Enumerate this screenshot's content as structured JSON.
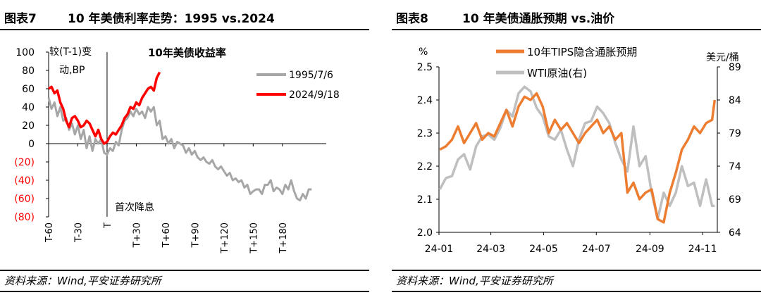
{
  "chart_data": [
    {
      "type": "line",
      "figure_label": "图表7",
      "title": "10 年美债利率走势：1995 vs.2024",
      "inner_title": "10年美债收益率",
      "ylabel": "较(T-1)变动,BP",
      "ylabel_lines": [
        "较(T-1)变",
        "动,BP"
      ],
      "ylim": [
        -80,
        100
      ],
      "yticks": [
        100,
        80,
        60,
        40,
        20,
        0,
        -20,
        -40,
        -60,
        -80
      ],
      "ytick_labels": [
        "100",
        "80",
        "60",
        "40",
        "20",
        "0",
        "(20)",
        "(40)",
        "(60)",
        "(80)"
      ],
      "negative_label_color": "#ff0000",
      "xlim": [
        -60,
        225
      ],
      "xticks": [
        -60,
        -30,
        0,
        30,
        60,
        90,
        120,
        150,
        180
      ],
      "xtick_labels": [
        "T-60",
        "T-30",
        "T",
        "T+30",
        "T+60",
        "T+90",
        "T+120",
        "T+150",
        "T+180"
      ],
      "annotation": "首次降息",
      "annotation_x": 0,
      "legend_position": "right",
      "series": [
        {
          "name": "1995/7/6",
          "color": "#a6a6a6",
          "x": [
            -60,
            -57,
            -54,
            -51,
            -48,
            -45,
            -42,
            -39,
            -36,
            -33,
            -30,
            -27,
            -24,
            -21,
            -18,
            -15,
            -12,
            -9,
            -6,
            -3,
            0,
            3,
            6,
            9,
            12,
            15,
            18,
            21,
            24,
            27,
            30,
            33,
            36,
            39,
            42,
            45,
            48,
            51,
            54,
            57,
            60,
            63,
            66,
            69,
            72,
            75,
            78,
            81,
            84,
            87,
            90,
            93,
            96,
            99,
            102,
            105,
            108,
            111,
            114,
            117,
            120,
            123,
            126,
            129,
            132,
            135,
            138,
            141,
            144,
            147,
            150,
            153,
            156,
            159,
            162,
            165,
            168,
            171,
            174,
            177,
            180,
            183,
            186,
            189,
            192,
            195,
            198,
            201,
            204,
            207,
            210
          ],
          "y": [
            50,
            38,
            45,
            30,
            40,
            25,
            28,
            15,
            22,
            10,
            20,
            5,
            15,
            -5,
            8,
            -8,
            5,
            0,
            5,
            -10,
            -12,
            -5,
            -8,
            2,
            -2,
            15,
            25,
            28,
            35,
            30,
            38,
            32,
            35,
            28,
            40,
            35,
            40,
            20,
            25,
            5,
            8,
            0,
            5,
            -5,
            2,
            0,
            -2,
            -10,
            -5,
            -12,
            -8,
            -15,
            -18,
            -15,
            -20,
            -22,
            -18,
            -25,
            -28,
            -25,
            -30,
            -35,
            -32,
            -40,
            -38,
            -42,
            -40,
            -48,
            -45,
            -55,
            -52,
            -50,
            -50,
            -55,
            -45,
            -45,
            -40,
            -52,
            -48,
            -50,
            -55,
            -45,
            -50,
            -40,
            -52,
            -60,
            -62,
            -55,
            -60,
            -50,
            -50
          ]
        },
        {
          "name": "2024/9/18",
          "color": "#ff0000",
          "x": [
            -60,
            -57,
            -54,
            -51,
            -48,
            -45,
            -42,
            -39,
            -36,
            -33,
            -30,
            -27,
            -24,
            -21,
            -18,
            -15,
            -12,
            -9,
            -6,
            -3,
            0,
            3,
            6,
            9,
            12,
            15,
            18,
            21,
            24,
            27,
            30,
            33,
            36,
            39,
            42,
            45,
            48,
            51,
            54
          ],
          "y": [
            60,
            62,
            55,
            58,
            45,
            38,
            25,
            18,
            28,
            30,
            25,
            18,
            20,
            25,
            22,
            15,
            8,
            15,
            5,
            0,
            2,
            8,
            12,
            10,
            15,
            20,
            28,
            32,
            40,
            38,
            45,
            42,
            50,
            55,
            60,
            62,
            58,
            72,
            78
          ]
        }
      ]
    },
    {
      "type": "line",
      "figure_label": "图表8",
      "title": "10 年美债通胀预期  vs.油价",
      "ylabel_left": "%",
      "ylabel_right": "美元/桶",
      "ylim_left": [
        2.0,
        2.5
      ],
      "yticks_left": [
        "2.5",
        "2.4",
        "2.3",
        "2.2",
        "2.1",
        "2.0"
      ],
      "ylim_right": [
        64,
        89
      ],
      "yticks_right": [
        "89",
        "84",
        "79",
        "74",
        "69",
        "64"
      ],
      "xlim": [
        "2024-01-01",
        "2024-11-18"
      ],
      "xtick_labels": [
        "24-01",
        "24-03",
        "24-05",
        "24-07",
        "24-09",
        "24-11"
      ],
      "legend_position": "top-center",
      "series": [
        {
          "name": "10年TIPS隐含通胀预期",
          "axis": "left",
          "color": "#ed7d31",
          "x": [
            "2024-01-02",
            "2024-01-09",
            "2024-01-16",
            "2024-01-23",
            "2024-01-30",
            "2024-02-06",
            "2024-02-13",
            "2024-02-20",
            "2024-02-27",
            "2024-03-05",
            "2024-03-12",
            "2024-03-19",
            "2024-03-26",
            "2024-04-02",
            "2024-04-09",
            "2024-04-16",
            "2024-04-23",
            "2024-04-30",
            "2024-05-07",
            "2024-05-14",
            "2024-05-21",
            "2024-05-28",
            "2024-06-04",
            "2024-06-11",
            "2024-06-18",
            "2024-06-25",
            "2024-07-02",
            "2024-07-09",
            "2024-07-16",
            "2024-07-23",
            "2024-07-30",
            "2024-08-06",
            "2024-08-13",
            "2024-08-20",
            "2024-08-27",
            "2024-09-03",
            "2024-09-10",
            "2024-09-17",
            "2024-09-24",
            "2024-10-01",
            "2024-10-08",
            "2024-10-15",
            "2024-10-22",
            "2024-10-29",
            "2024-11-05",
            "2024-11-12",
            "2024-11-15"
          ],
          "y": [
            2.25,
            2.26,
            2.28,
            2.32,
            2.27,
            2.3,
            2.33,
            2.28,
            2.3,
            2.29,
            2.33,
            2.37,
            2.32,
            2.38,
            2.41,
            2.4,
            2.42,
            2.38,
            2.3,
            2.34,
            2.31,
            2.33,
            2.3,
            2.27,
            2.3,
            2.32,
            2.34,
            2.3,
            2.32,
            2.28,
            2.3,
            2.12,
            2.15,
            2.1,
            2.12,
            2.13,
            2.04,
            2.03,
            2.12,
            2.18,
            2.25,
            2.28,
            2.32,
            2.3,
            2.33,
            2.34,
            2.4
          ]
        },
        {
          "name": "WTI原油(右)",
          "axis": "right",
          "color": "#bfbfbf",
          "x": [
            "2024-01-02",
            "2024-01-09",
            "2024-01-16",
            "2024-01-23",
            "2024-01-30",
            "2024-02-06",
            "2024-02-13",
            "2024-02-20",
            "2024-02-27",
            "2024-03-05",
            "2024-03-12",
            "2024-03-19",
            "2024-03-26",
            "2024-04-02",
            "2024-04-09",
            "2024-04-16",
            "2024-04-23",
            "2024-04-30",
            "2024-05-07",
            "2024-05-14",
            "2024-05-21",
            "2024-05-28",
            "2024-06-04",
            "2024-06-11",
            "2024-06-18",
            "2024-06-25",
            "2024-07-02",
            "2024-07-09",
            "2024-07-16",
            "2024-07-23",
            "2024-07-30",
            "2024-08-06",
            "2024-08-13",
            "2024-08-20",
            "2024-08-27",
            "2024-09-03",
            "2024-09-10",
            "2024-09-17",
            "2024-09-24",
            "2024-10-01",
            "2024-10-08",
            "2024-10-15",
            "2024-10-22",
            "2024-10-29",
            "2024-11-05",
            "2024-11-12",
            "2024-11-15"
          ],
          "y": [
            70.5,
            72.2,
            72.5,
            75.0,
            75.8,
            73.5,
            77.0,
            78.5,
            78.8,
            78.0,
            79.8,
            82.5,
            81.5,
            85.0,
            86.0,
            85.3,
            82.8,
            81.5,
            78.5,
            78.0,
            79.5,
            76.5,
            74.0,
            78.0,
            80.5,
            80.8,
            83.0,
            82.0,
            80.5,
            77.5,
            75.0,
            73.2,
            80.0,
            74.0,
            75.5,
            70.0,
            66.0,
            70.0,
            68.0,
            70.0,
            74.0,
            71.0,
            71.5,
            68.0,
            72.0,
            68.0,
            68.0
          ]
        }
      ]
    }
  ],
  "source": "资料来源：Wind,平安证券研究所"
}
